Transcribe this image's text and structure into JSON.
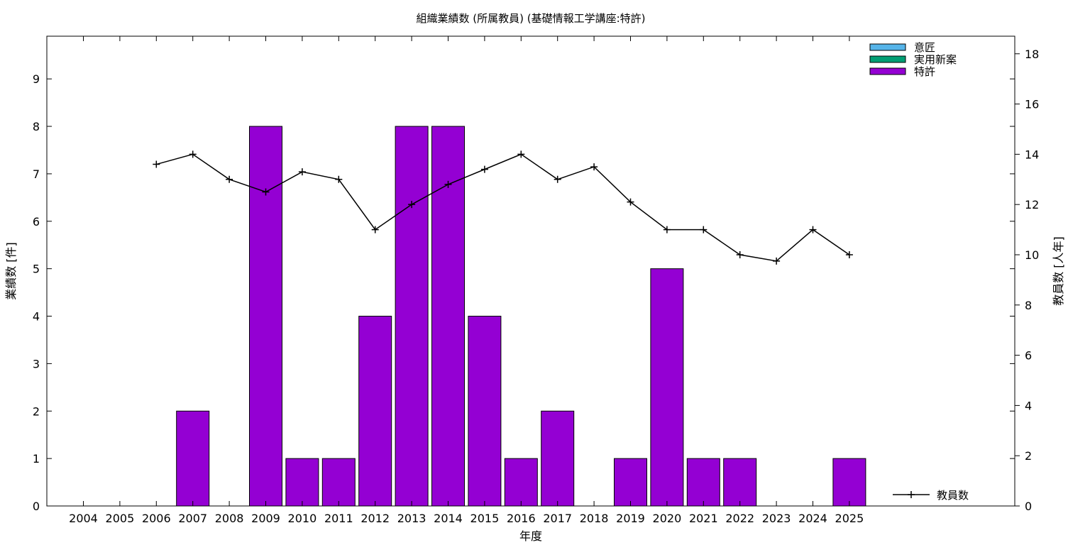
{
  "chart_data": {
    "type": "bar",
    "title": "組織業績数 (所属教員) (基礎情報工学講座:特許)",
    "xlabel": "年度",
    "ylabel": "業績数 [件]",
    "y2label": "教員数 [人年]",
    "categories": [
      "2004",
      "2005",
      "2006",
      "2007",
      "2008",
      "2009",
      "2010",
      "2011",
      "2012",
      "2013",
      "2014",
      "2015",
      "2016",
      "2017",
      "2018",
      "2019",
      "2020",
      "2021",
      "2022",
      "2023",
      "2024",
      "2025"
    ],
    "ylim": [
      0,
      9.9
    ],
    "yticks": [
      0,
      1,
      2,
      3,
      4,
      5,
      6,
      7,
      8,
      9
    ],
    "y2lim": [
      0,
      18.7
    ],
    "y2ticks": [
      0,
      2,
      4,
      6,
      8,
      10,
      12,
      14,
      16,
      18
    ],
    "bar_series": [
      {
        "name": "意匠",
        "color": "#56b4e9",
        "values": [
          0,
          0,
          0,
          0,
          0,
          0,
          0,
          0,
          0,
          0,
          0,
          0,
          0,
          0,
          0,
          0,
          0,
          0,
          0,
          0,
          0,
          0
        ]
      },
      {
        "name": "実用新案",
        "color": "#009e73",
        "values": [
          0,
          0,
          0,
          0,
          0,
          0,
          0,
          0,
          0,
          0,
          0,
          0,
          0,
          0,
          0,
          0,
          0,
          0,
          0,
          0,
          0,
          0
        ]
      },
      {
        "name": "特許",
        "color": "#9400d3",
        "values": [
          0,
          0,
          0,
          2,
          0,
          8,
          1,
          1,
          4,
          8,
          8,
          4,
          1,
          2,
          0,
          1,
          5,
          1,
          1,
          0,
          0,
          1
        ]
      }
    ],
    "line_series": {
      "name": "教員数",
      "axis": "y2",
      "color": "#000000",
      "x": [
        "2006",
        "2007",
        "2008",
        "2009",
        "2010",
        "2011",
        "2012",
        "2013",
        "2014",
        "2015",
        "2016",
        "2017",
        "2018",
        "2019",
        "2020",
        "2021",
        "2022",
        "2023",
        "2024",
        "2025"
      ],
      "values": [
        13.6,
        14.0,
        13.0,
        12.5,
        13.3,
        13.0,
        11.0,
        12.0,
        12.8,
        13.4,
        14.0,
        13.0,
        13.5,
        12.1,
        11.0,
        11.0,
        10.0,
        9.75,
        11.0,
        10.0
      ]
    },
    "grid": false,
    "legend_bars_position": "top-right",
    "legend_line_position": "bottom-right"
  }
}
